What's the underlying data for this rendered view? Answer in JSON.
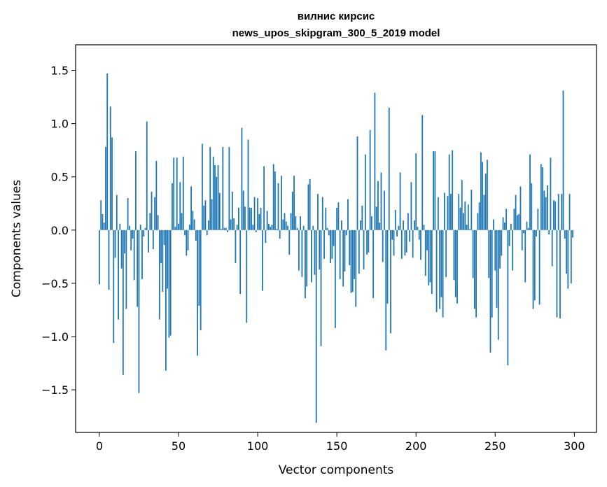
{
  "chart_data": {
    "type": "bar",
    "title_lines": [
      "вилнис кирсис",
      "news_upos_skipgram_300_5_2019 model"
    ],
    "xlabel": "Vector components",
    "ylabel": "Components values",
    "xlim": [
      -15,
      314
    ],
    "ylim": [
      -1.9,
      1.74
    ],
    "x_ticks": [
      0,
      50,
      100,
      150,
      200,
      250,
      300
    ],
    "x_tick_labels": [
      "0",
      "50",
      "100",
      "150",
      "200",
      "250",
      "300"
    ],
    "y_ticks": [
      -1.5,
      -1.0,
      -0.5,
      0.0,
      0.5,
      1.0,
      1.5
    ],
    "y_tick_labels": [
      "−1.5",
      "−1.0",
      "−0.5",
      "0.0",
      "0.5",
      "1.0",
      "1.5"
    ],
    "bar_color": "#1f77b4",
    "values": [
      -0.51,
      0.28,
      0.15,
      0.07,
      0.78,
      1.47,
      -0.56,
      1.16,
      0.87,
      -1.06,
      -0.26,
      0.33,
      -0.84,
      0.06,
      -0.36,
      -1.36,
      -0.22,
      -0.74,
      0.3,
      0.04,
      -0.19,
      -0.08,
      -0.47,
      0.74,
      -0.72,
      -1.53,
      0.05,
      -0.46,
      -0.06,
      0.02,
      1.02,
      -0.21,
      0.16,
      0.36,
      -0.18,
      0.31,
      0.65,
      0.14,
      -0.84,
      -0.31,
      -0.58,
      -0.14,
      -1.32,
      -0.55,
      -1.01,
      -0.99,
      0.44,
      0.68,
      0.03,
      0.68,
      0.06,
      0.45,
      0.16,
      0.69,
      -0.05,
      -0.24,
      -0.19,
      0.05,
      0.41,
      0.18,
      0.1,
      -0.1,
      -1.18,
      -0.71,
      -0.94,
      0.81,
      0.23,
      0.28,
      -0.05,
      0.09,
      0.78,
      0.29,
      0.69,
      0.61,
      0.5,
      0.61,
      0.35,
      0.01,
      0.78,
      0.02,
      0.02,
      -0.02,
      0.78,
      0.1,
      0.36,
      0.11,
      -0.31,
      0.05,
      0.21,
      -0.6,
      0.96,
      0.37,
      0.22,
      -0.87,
      0.85,
      0.21,
      0.21,
      0.05,
      0.31,
      -0.02,
      0.3,
      0.15,
      0.21,
      -0.57,
      0.6,
      -0.12,
      0.18,
      0.06,
      0.03,
      0.05,
      0.62,
      0.55,
      0.01,
      0.44,
      -0.08,
      0.51,
      0.1,
      0.16,
      0.08,
      0.04,
      -0.23,
      0.16,
      0.36,
      0.51,
      0.13,
      0.02,
      -0.38,
      0.13,
      -0.44,
      0.04,
      -0.64,
      -0.53,
      0.43,
      0.48,
      -0.49,
      0.04,
      -0.42,
      -1.81,
      0.34,
      -0.37,
      -1.09,
      0.31,
      -0.27,
      0.21,
      0.02,
      -0.05,
      -0.31,
      -0.27,
      -0.15,
      -0.92,
      0.21,
      0.26,
      -0.46,
      0.09,
      -0.53,
      -0.39,
      -0.05,
      0.29,
      -0.33,
      -0.59,
      -0.58,
      -0.46,
      -0.72,
      0.88,
      -0.41,
      0.09,
      0.23,
      -0.37,
      0.71,
      -0.23,
      -0.21,
      0.94,
      0.13,
      -0.64,
      1.29,
      0.22,
      0.46,
      0.07,
      0.54,
      -0.3,
      0.37,
      -1.13,
      -0.69,
      1.15,
      -0.97,
      -0.09,
      -0.24,
      0.19,
      -0.06,
      0.04,
      0.54,
      -0.27,
      0.09,
      -0.24,
      -0.21,
      0.16,
      -0.11,
      0.45,
      -0.26,
      0.09,
      0.72,
      0.03,
      -0.09,
      -0.28,
      1.08,
      0.05,
      -0.43,
      -0.19,
      -0.52,
      -0.49,
      -0.6,
      0.74,
      0.74,
      -0.77,
      0.31,
      -0.74,
      -0.63,
      -0.82,
      0.35,
      -0.44,
      0.32,
      0.71,
      0.34,
      0.75,
      -0.47,
      -0.63,
      -0.69,
      0.34,
      0.21,
      0.47,
      0.16,
      0.27,
      0.05,
      0.24,
      0.01,
      0.38,
      -0.45,
      -0.74,
      -0.82,
      0.16,
      0.26,
      0.73,
      0.64,
      0.33,
      0.53,
      0.66,
      -0.45,
      -1.15,
      -0.82,
      0.1,
      -0.38,
      -0.73,
      -1.03,
      -0.36,
      -0.24,
      0.12,
      0.07,
      0.2,
      -1.27,
      -0.15,
      0.06,
      -0.38,
      0.2,
      0.33,
      0.14,
      0.15,
      0.41,
      -0.19,
      -0.03,
      -0.49,
      0.08,
      0.02,
      0.71,
      0.44,
      -0.74,
      -0.66,
      -0.06,
      0.2,
      -0.7,
      0.62,
      0.59,
      0.37,
      0.31,
      0.42,
      -0.04,
      0.68,
      -0.34,
      0.28,
      0.27,
      -0.82,
      0.34,
      -0.83,
      0.34,
      1.31,
      -0.08,
      -0.41,
      -0.55,
      0.34,
      -0.5,
      -0.07
    ]
  }
}
